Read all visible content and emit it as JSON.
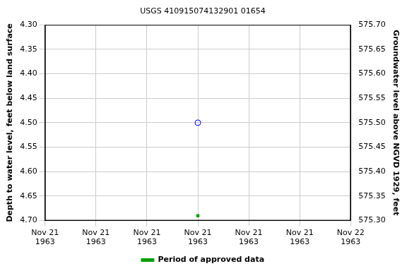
{
  "chart_data": {
    "type": "scatter",
    "title": "USGS 410915074132901 01654",
    "x": [
      3
    ],
    "xlim": [
      0,
      6
    ],
    "xticks": [
      {
        "value": 0,
        "label": "Nov 21 1963"
      },
      {
        "value": 1,
        "label": "Nov 21 1963"
      },
      {
        "value": 2,
        "label": "Nov 21 1963"
      },
      {
        "value": 3,
        "label": "Nov 21 1963"
      },
      {
        "value": 4,
        "label": "Nov 21 1963"
      },
      {
        "value": 5,
        "label": "Nov 21 1963"
      },
      {
        "value": 6,
        "label": "Nov 22 1963"
      }
    ],
    "y_label": "Depth to water level, feet below land surface",
    "y2_label": "Groundwater level above NGVD 1929, feet",
    "ylim": [
      4.7,
      4.3
    ],
    "yticks": [
      {
        "value": 4.3,
        "label": "4.30"
      },
      {
        "value": 4.35,
        "label": "4.35"
      },
      {
        "value": 4.4,
        "label": "4.40"
      },
      {
        "value": 4.45,
        "label": "4.45"
      },
      {
        "value": 4.5,
        "label": "4.50"
      },
      {
        "value": 4.55,
        "label": "4.55"
      },
      {
        "value": 4.6,
        "label": "4.60"
      },
      {
        "value": 4.65,
        "label": "4.65"
      },
      {
        "value": 4.7,
        "label": "4.70"
      }
    ],
    "y2lim": [
      575.3,
      575.7
    ],
    "y2ticks": [
      {
        "value": 575.3,
        "label": "575.30"
      },
      {
        "value": 575.35,
        "label": "575.35"
      },
      {
        "value": 575.4,
        "label": "575.40"
      },
      {
        "value": 575.45,
        "label": "575.45"
      },
      {
        "value": 575.5,
        "label": "575.50"
      },
      {
        "value": 575.55,
        "label": "575.55"
      },
      {
        "value": 575.6,
        "label": "575.60"
      },
      {
        "value": 575.65,
        "label": "575.65"
      },
      {
        "value": 575.7,
        "label": "575.70"
      }
    ],
    "series": [
      {
        "values": [
          4.5
        ],
        "color": "#0000ff",
        "marker": "circle-open"
      },
      {
        "name": "Period of approved data",
        "values": [
          4.69
        ],
        "color": "#00a000",
        "marker": "square"
      }
    ],
    "grid": true,
    "legend": "bottom"
  }
}
